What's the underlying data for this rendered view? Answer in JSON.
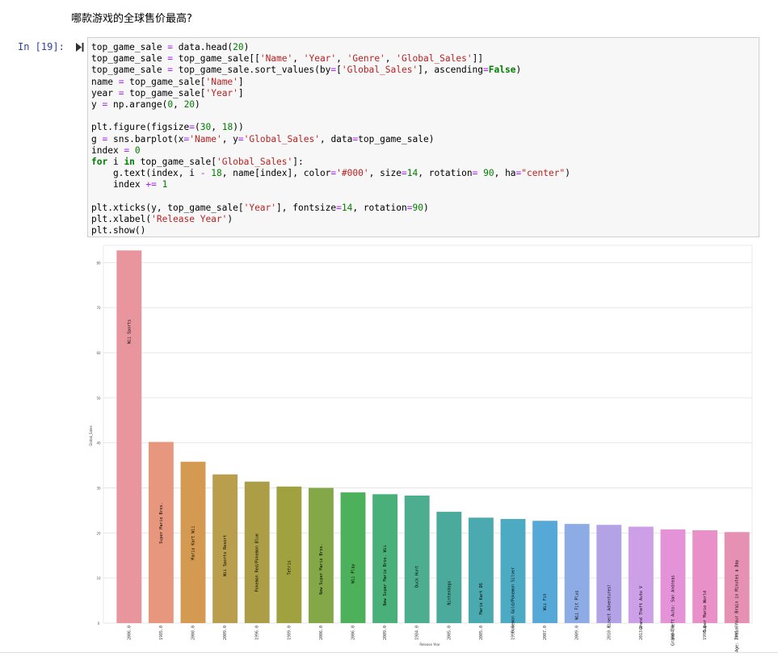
{
  "markdown_heading": "哪款游戏的全球售价最高?",
  "cell": {
    "prompt": "In  [19]:",
    "code_lines": [
      [
        [
          "t",
          "top_game_sale "
        ],
        [
          "o",
          "="
        ],
        [
          "t",
          " data.head("
        ],
        [
          "n",
          "20"
        ],
        [
          "t",
          ")"
        ]
      ],
      [
        [
          "t",
          "top_game_sale "
        ],
        [
          "o",
          "="
        ],
        [
          "t",
          " top_game_sale[["
        ],
        [
          "s",
          "'Name'"
        ],
        [
          "t",
          ", "
        ],
        [
          "s",
          "'Year'"
        ],
        [
          "t",
          ", "
        ],
        [
          "s",
          "'Genre'"
        ],
        [
          "t",
          ", "
        ],
        [
          "s",
          "'Global_Sales'"
        ],
        [
          "t",
          "]]"
        ]
      ],
      [
        [
          "t",
          "top_game_sale "
        ],
        [
          "o",
          "="
        ],
        [
          "t",
          " top_game_sale.sort_values(by"
        ],
        [
          "o",
          "="
        ],
        [
          "t",
          "["
        ],
        [
          "s",
          "'Global_Sales'"
        ],
        [
          "t",
          "], ascending"
        ],
        [
          "o",
          "="
        ],
        [
          "k",
          "False"
        ],
        [
          "t",
          ")"
        ]
      ],
      [
        [
          "t",
          "name "
        ],
        [
          "o",
          "="
        ],
        [
          "t",
          " top_game_sale["
        ],
        [
          "s",
          "'Name'"
        ],
        [
          "t",
          "]"
        ]
      ],
      [
        [
          "t",
          "year "
        ],
        [
          "o",
          "="
        ],
        [
          "t",
          " top_game_sale["
        ],
        [
          "s",
          "'Year'"
        ],
        [
          "t",
          "]"
        ]
      ],
      [
        [
          "t",
          "y "
        ],
        [
          "o",
          "="
        ],
        [
          "t",
          " np.arange("
        ],
        [
          "n",
          "0"
        ],
        [
          "t",
          ", "
        ],
        [
          "n",
          "20"
        ],
        [
          "t",
          ")"
        ]
      ],
      [],
      [
        [
          "t",
          "plt.figure(figsize"
        ],
        [
          "o",
          "="
        ],
        [
          "t",
          "("
        ],
        [
          "n",
          "30"
        ],
        [
          "t",
          ", "
        ],
        [
          "n",
          "18"
        ],
        [
          "t",
          "))"
        ]
      ],
      [
        [
          "t",
          "g "
        ],
        [
          "o",
          "="
        ],
        [
          "t",
          " sns.barplot(x"
        ],
        [
          "o",
          "="
        ],
        [
          "s",
          "'Name'"
        ],
        [
          "t",
          ", y"
        ],
        [
          "o",
          "="
        ],
        [
          "s",
          "'Global_Sales'"
        ],
        [
          "t",
          ", data"
        ],
        [
          "o",
          "="
        ],
        [
          "t",
          "top_game_sale)"
        ]
      ],
      [
        [
          "t",
          "index "
        ],
        [
          "o",
          "="
        ],
        [
          "t",
          " "
        ],
        [
          "n",
          "0"
        ]
      ],
      [
        [
          "k",
          "for"
        ],
        [
          "t",
          " i "
        ],
        [
          "k",
          "in"
        ],
        [
          "t",
          " top_game_sale["
        ],
        [
          "s",
          "'Global_Sales'"
        ],
        [
          "t",
          "]:"
        ]
      ],
      [
        [
          "t",
          "    g.text(index, i "
        ],
        [
          "o",
          "-"
        ],
        [
          "t",
          " "
        ],
        [
          "n",
          "18"
        ],
        [
          "t",
          ", name[index], color"
        ],
        [
          "o",
          "="
        ],
        [
          "s",
          "'#000'"
        ],
        [
          "t",
          ", size"
        ],
        [
          "o",
          "="
        ],
        [
          "n",
          "14"
        ],
        [
          "t",
          ", rotation"
        ],
        [
          "o",
          "="
        ],
        [
          "t",
          " "
        ],
        [
          "n",
          "90"
        ],
        [
          "t",
          ", ha"
        ],
        [
          "o",
          "="
        ],
        [
          "s",
          "\"center\""
        ],
        [
          "t",
          ")"
        ]
      ],
      [
        [
          "t",
          "    index "
        ],
        [
          "o",
          "+="
        ],
        [
          "t",
          " "
        ],
        [
          "n",
          "1"
        ]
      ],
      [],
      [
        [
          "t",
          "plt.xticks(y, top_game_sale["
        ],
        [
          "s",
          "'Year'"
        ],
        [
          "t",
          "], fontsize"
        ],
        [
          "o",
          "="
        ],
        [
          "n",
          "14"
        ],
        [
          "t",
          ", rotation"
        ],
        [
          "o",
          "="
        ],
        [
          "n",
          "90"
        ],
        [
          "t",
          ")"
        ]
      ],
      [
        [
          "t",
          "plt.xlabel("
        ],
        [
          "s",
          "'Release Year'"
        ],
        [
          "t",
          ")"
        ]
      ],
      [
        [
          "t",
          "plt.show()"
        ]
      ]
    ]
  },
  "chart_data": {
    "type": "bar",
    "xlabel": "Release Year",
    "ylabel": "Global_Sales",
    "ylim": [
      0,
      84
    ],
    "yticks": [
      0,
      10,
      20,
      30,
      40,
      50,
      60,
      70,
      80
    ],
    "grid": "horizontal",
    "categories": [
      "2006.0",
      "1985.0",
      "2008.0",
      "2009.0",
      "1996.0",
      "1989.0",
      "2006.0",
      "2006.0",
      "2009.0",
      "1984.0",
      "2005.0",
      "2005.0",
      "1999.0",
      "2007.0",
      "2009.0",
      "2010.0",
      "2013.0",
      "2004.0",
      "1990.0",
      "2005.0"
    ],
    "bar_labels": [
      "Wii Sports",
      "Super Mario Bros.",
      "Mario Kart Wii",
      "Wii Sports Resort",
      "Pokemon Red/Pokemon Blue",
      "Tetris",
      "New Super Mario Bros.",
      "Wii Play",
      "New Super Mario Bros. Wii",
      "Duck Hunt",
      "Nintendogs",
      "Mario Kart DS",
      "Pokemon Gold/Pokemon Silver",
      "Wii Fit",
      "Wii Fit Plus",
      "Kinect Adventures!",
      "Grand Theft Auto V",
      "Grand Theft Auto: San Andreas",
      "Super Mario World",
      "Brain Age: Train Your Brain in Minutes a Day"
    ],
    "values": [
      82.7,
      40.2,
      35.8,
      33.0,
      31.4,
      30.3,
      30.0,
      29.0,
      28.6,
      28.3,
      24.7,
      23.4,
      23.1,
      22.7,
      22.0,
      21.8,
      21.4,
      20.8,
      20.6,
      20.2
    ],
    "colors": [
      "#e8959e",
      "#e8977f",
      "#d59a52",
      "#b99e4e",
      "#ab9e47",
      "#9fa23f",
      "#84a747",
      "#4db05a",
      "#4ab07a",
      "#4cae8f",
      "#4aab9c",
      "#4baaaf",
      "#4cabc3",
      "#56a8d7",
      "#8dabe4",
      "#b3a3e6",
      "#cd9fe6",
      "#e493d9",
      "#e890c7",
      "#e690b4"
    ]
  }
}
